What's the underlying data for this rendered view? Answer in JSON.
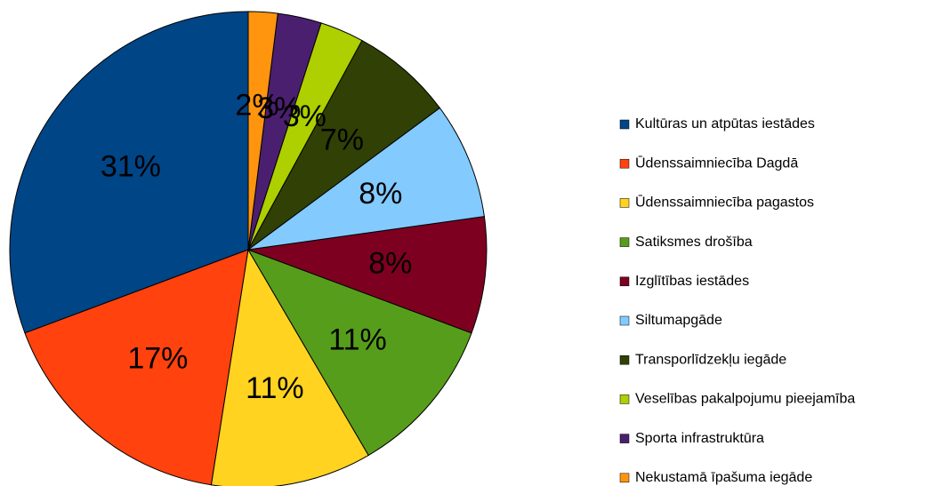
{
  "chart_data": {
    "type": "pie",
    "categories": [
      "Kultūras un atpūtas iestādes",
      "Ūdenssaimniecība Dagdā",
      "Ūdenssaimniecība pagastos",
      "Satiksmes drošība",
      "Izglītības iestādes",
      "Siltumapgāde",
      "Transporlīdzekļu iegāde",
      "Veselības pakalpojumu pieejamība",
      "Sporta infrastruktūra",
      "Nekustamā īpašuma iegāde"
    ],
    "values": [
      31,
      17,
      11,
      11,
      8,
      8,
      7,
      3,
      3,
      2
    ],
    "value_labels": [
      "31%",
      "17%",
      "11%",
      "11%",
      "8%",
      "8%",
      "7%",
      "3%",
      "3%",
      "2%"
    ],
    "colors": [
      "#004586",
      "#ff420e",
      "#ffd320",
      "#579d1c",
      "#7e0021",
      "#83caff",
      "#314004",
      "#aecf00",
      "#4b1f6f",
      "#ff950e"
    ],
    "legend": "right"
  }
}
